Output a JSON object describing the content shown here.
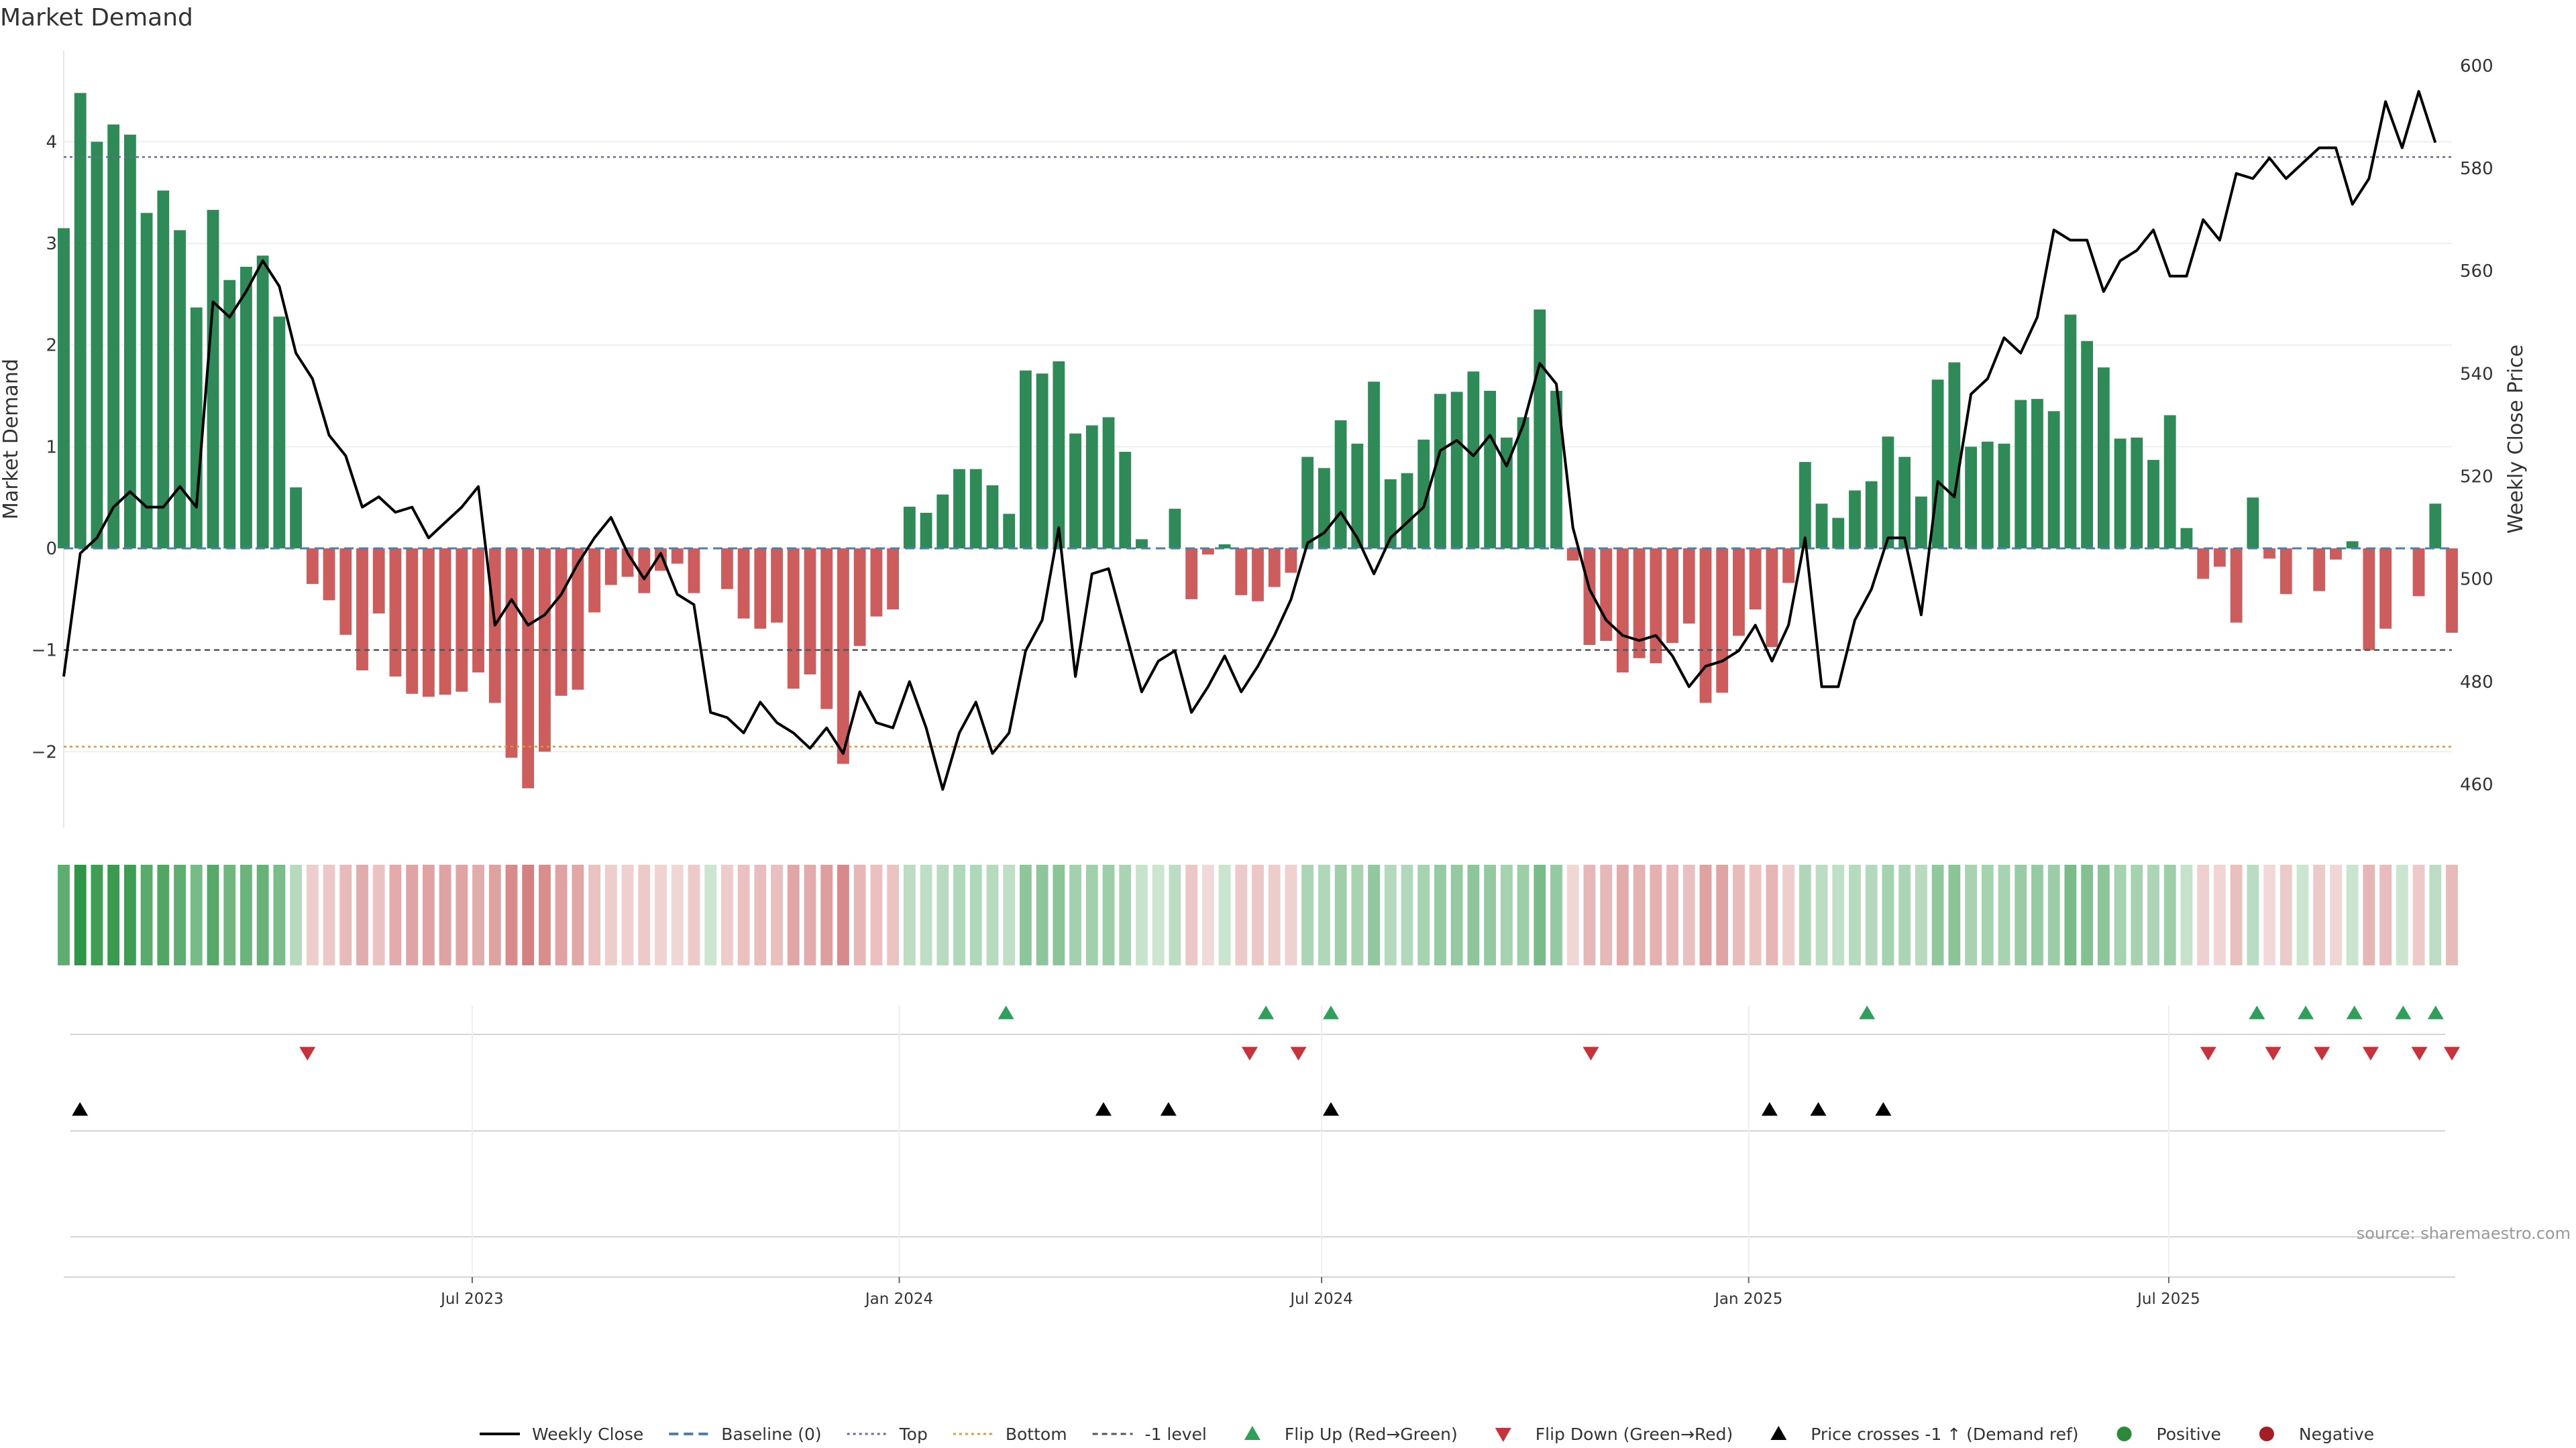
{
  "chart_data": {
    "type": "bar",
    "title": "Market Demand",
    "ylabel_left": "Market Demand",
    "ylabel_right": "Weekly Close Price",
    "source": "source: sharemaestro.com",
    "x_range": [
      "2023-01-06",
      "2025-10-31"
    ],
    "date_ticks": [
      {
        "date": "2023-07-01",
        "label": "Jul 2023"
      },
      {
        "date": "2024-01-01",
        "label": "Jan 2024"
      },
      {
        "date": "2024-07-01",
        "label": "Jul 2024"
      },
      {
        "date": "2025-01-01",
        "label": "Jan 2025"
      },
      {
        "date": "2025-07-01",
        "label": "Jul 2025"
      }
    ],
    "left_axis": {
      "ylim": [
        -2.75,
        4.9
      ],
      "ticks": [
        -2,
        -1,
        0,
        1,
        2,
        3,
        4
      ]
    },
    "right_axis": {
      "ylim": [
        451.5,
        603
      ],
      "ticks": [
        460,
        480,
        500,
        520,
        540,
        560,
        580,
        600
      ]
    },
    "reference_lines": {
      "baseline": 0,
      "top": 3.85,
      "bottom": -1.95,
      "minus_one_level": -1
    },
    "demand": [
      3.15,
      4.48,
      4.0,
      4.17,
      4.07,
      3.3,
      3.52,
      3.13,
      2.37,
      3.33,
      2.64,
      2.77,
      2.88,
      2.28,
      0.6,
      -0.35,
      -0.51,
      -0.85,
      -1.2,
      -0.64,
      -1.26,
      -1.43,
      -1.46,
      -1.44,
      -1.41,
      -1.22,
      -1.52,
      -2.06,
      -2.36,
      -2.0,
      -1.45,
      -1.39,
      -0.63,
      -0.36,
      -0.28,
      -0.44,
      -0.22,
      -0.15,
      -0.44,
      0.0,
      -0.4,
      -0.69,
      -0.79,
      -0.73,
      -1.38,
      -1.24,
      -1.58,
      -2.12,
      -0.96,
      -0.67,
      -0.6,
      0.41,
      0.35,
      0.53,
      0.78,
      0.78,
      0.62,
      0.34,
      1.75,
      1.72,
      1.84,
      1.13,
      1.21,
      1.29,
      0.95,
      0.09,
      0.0,
      0.39,
      -0.5,
      -0.06,
      0.04,
      -0.46,
      -0.52,
      -0.38,
      -0.24,
      0.9,
      0.79,
      1.26,
      1.03,
      1.64,
      0.68,
      0.74,
      1.07,
      1.52,
      1.54,
      1.74,
      1.55,
      1.09,
      1.29,
      2.35,
      1.55,
      -0.12,
      -0.95,
      -0.91,
      -1.22,
      -1.08,
      -1.13,
      -0.93,
      -0.74,
      -1.52,
      -1.42,
      -0.86,
      -0.6,
      -0.97,
      -0.34,
      0.85,
      0.44,
      0.3,
      0.57,
      0.66,
      1.1,
      0.9,
      0.51,
      1.66,
      1.83,
      1.0,
      1.05,
      1.03,
      1.46,
      1.47,
      1.35,
      2.3,
      2.04,
      1.78,
      1.08,
      1.09,
      0.87,
      1.31,
      0.2,
      -0.3,
      -0.18,
      -0.73,
      0.5,
      -0.1,
      -0.45,
      0.0,
      -0.42,
      -0.11,
      0.07,
      -1.0,
      -0.79,
      0.0,
      -0.47,
      0.44,
      -0.83
    ],
    "weekly_close": [
      481,
      505,
      508,
      514,
      517,
      514,
      514,
      518,
      514,
      554,
      551,
      556,
      562,
      557,
      544,
      539,
      528,
      524,
      514,
      516,
      513,
      514,
      508,
      511,
      514,
      518,
      491,
      496,
      491,
      493,
      497,
      503,
      508,
      512,
      505,
      500,
      505,
      497,
      495,
      474,
      473,
      470,
      476,
      472,
      470,
      467,
      471,
      466,
      478,
      472,
      471,
      480,
      471,
      459,
      470,
      476,
      466,
      470,
      486,
      492,
      510,
      481,
      501,
      502,
      490,
      478,
      484,
      486,
      474,
      479,
      485,
      478,
      483,
      489,
      496,
      507,
      509,
      513,
      508,
      501,
      508,
      511,
      514,
      525,
      527,
      524,
      528,
      522,
      530,
      542,
      538,
      510,
      498,
      492,
      489,
      488,
      489,
      485,
      479,
      483,
      484,
      486,
      491,
      484,
      491,
      508,
      479,
      479,
      492,
      498,
      508,
      508,
      493,
      519,
      516,
      536,
      539,
      547,
      544,
      551,
      568,
      566,
      566,
      556,
      562,
      564,
      568,
      559,
      559,
      570,
      566,
      579,
      578,
      582,
      578,
      581,
      584,
      584,
      573,
      578,
      593,
      584,
      595,
      585
    ],
    "flips_up": [
      "2024-02-16",
      "2024-06-07",
      "2024-07-05",
      "2025-02-21",
      "2025-08-08",
      "2025-08-29",
      "2025-09-19",
      "2025-10-10",
      "2025-10-24"
    ],
    "flips_down": [
      "2023-04-21",
      "2024-05-31",
      "2024-06-21",
      "2024-10-25",
      "2025-07-18",
      "2025-08-15",
      "2025-09-05",
      "2025-09-26",
      "2025-10-17",
      "2025-10-31"
    ],
    "price_crosses": [
      "2023-01-13",
      "2024-03-29",
      "2024-04-26",
      "2024-07-05",
      "2025-01-10",
      "2025-01-31",
      "2025-02-28"
    ],
    "legend": [
      {
        "label": "Weekly Close",
        "kind": "line",
        "color": "#000000"
      },
      {
        "label": "Baseline (0)",
        "kind": "dash",
        "color": "#4a7fb0"
      },
      {
        "label": "Top",
        "kind": "dot",
        "color": "#6a6a9a"
      },
      {
        "label": "Bottom",
        "kind": "dot",
        "color": "#d89a40"
      },
      {
        "label": "-1 level",
        "kind": "dash2",
        "color": "#555555"
      },
      {
        "label": "Flip Up (Red→Green)",
        "kind": "tri-up",
        "color": "#2ea05a"
      },
      {
        "label": "Flip Down (Green→Red)",
        "kind": "tri-down",
        "color": "#c8323a"
      },
      {
        "label": "Price crosses -1 ↑ (Demand ref)",
        "kind": "tri-up",
        "color": "#000000"
      },
      {
        "label": "Positive",
        "kind": "dot-marker",
        "color": "#2a8a3a"
      },
      {
        "label": "Negative",
        "kind": "dot-marker",
        "color": "#a31f24"
      }
    ],
    "colors": {
      "positive": "#2e8b57",
      "negative": "#cd5c5c",
      "line": "#000000"
    }
  }
}
